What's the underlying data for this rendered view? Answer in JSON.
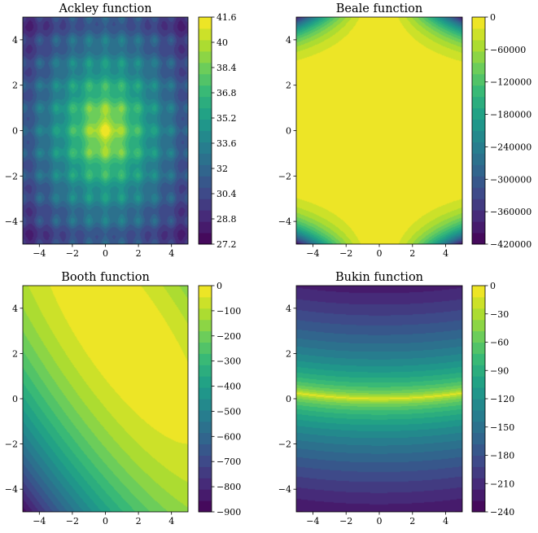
{
  "chart_data": [
    {
      "type": "heatmap",
      "title": "Ackley function",
      "xlim": [
        -5,
        5
      ],
      "ylim": [
        -5,
        5
      ],
      "xticks": [
        -4,
        -2,
        0,
        2,
        4
      ],
      "yticks": [
        -4,
        -2,
        0,
        2,
        4
      ],
      "colorbar_ticks": [
        41.6,
        40.0,
        38.4,
        36.8,
        35.2,
        33.6,
        32.0,
        30.4,
        28.8,
        27.2
      ],
      "value_range": [
        27.2,
        41.6
      ],
      "colormap": "viridis",
      "function": "ackley"
    },
    {
      "type": "heatmap",
      "title": "Beale function",
      "xlim": [
        -5,
        5
      ],
      "ylim": [
        -5,
        5
      ],
      "xticks": [
        -4,
        -2,
        0,
        2,
        4
      ],
      "yticks": [
        -4,
        -2,
        0,
        2,
        4
      ],
      "colorbar_ticks": [
        0,
        -60000,
        -120000,
        -180000,
        -240000,
        -300000,
        -360000,
        -420000
      ],
      "value_range": [
        -420000,
        0
      ],
      "colormap": "viridis",
      "function": "beale"
    },
    {
      "type": "heatmap",
      "title": "Booth function",
      "xlim": [
        -5,
        5
      ],
      "ylim": [
        -5,
        5
      ],
      "xticks": [
        -4,
        -2,
        0,
        2,
        4
      ],
      "yticks": [
        -4,
        -2,
        0,
        2,
        4
      ],
      "colorbar_ticks": [
        0,
        -100,
        -200,
        -300,
        -400,
        -500,
        -600,
        -700,
        -800,
        -900
      ],
      "value_range": [
        -900,
        0
      ],
      "colormap": "viridis",
      "function": "booth"
    },
    {
      "type": "heatmap",
      "title": "Bukin function",
      "xlim": [
        -5,
        5
      ],
      "ylim": [
        -5,
        5
      ],
      "xticks": [
        -4,
        -2,
        0,
        2,
        4
      ],
      "yticks": [
        -4,
        -2,
        0,
        2,
        4
      ],
      "colorbar_ticks": [
        0,
        -30,
        -60,
        -90,
        -120,
        -150,
        -180,
        -210,
        -240
      ],
      "value_range": [
        -240,
        0
      ],
      "colormap": "viridis",
      "function": "bukin"
    }
  ]
}
